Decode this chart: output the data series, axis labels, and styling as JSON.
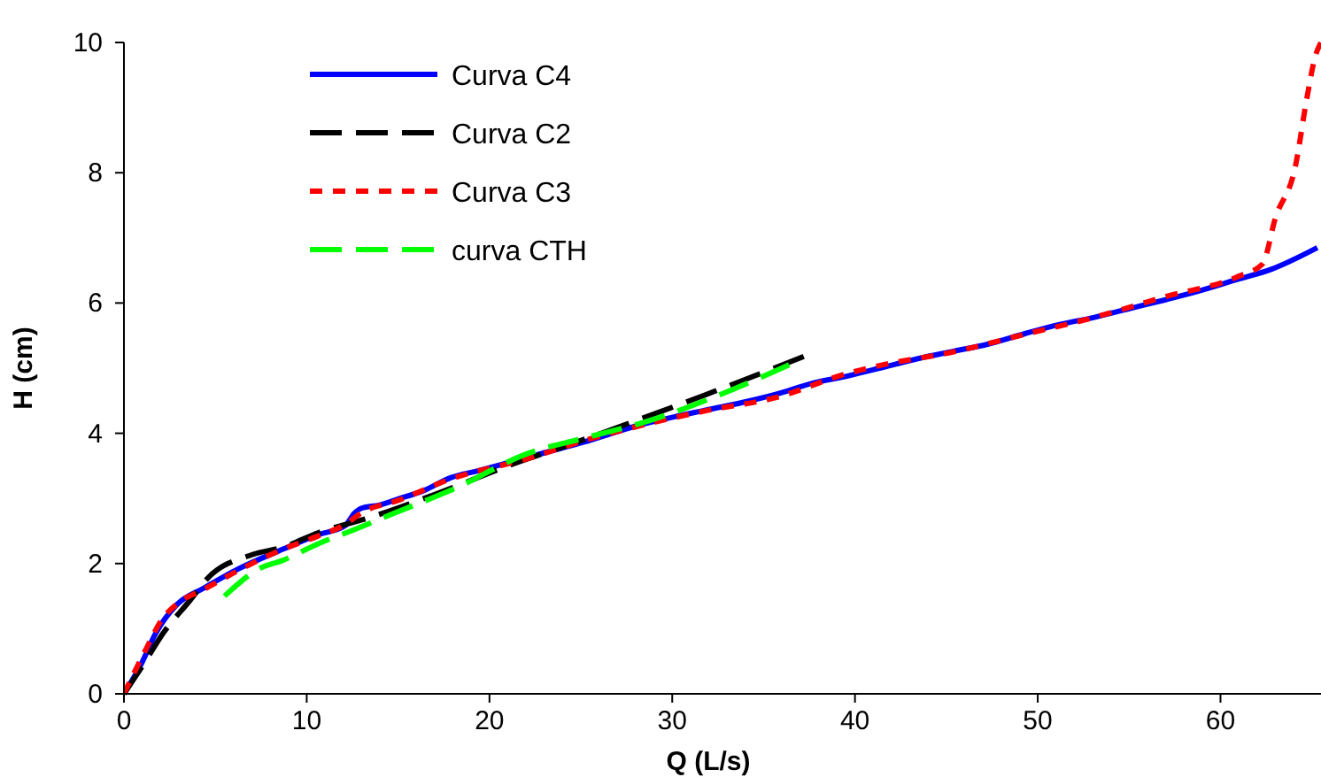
{
  "chart_data": {
    "type": "line",
    "xlabel": "Q (L/s)",
    "ylabel": "H (cm)",
    "xlim": [
      0,
      65.5
    ],
    "ylim": [
      0,
      10
    ],
    "xticks": [
      0,
      10,
      20,
      30,
      40,
      50,
      60
    ],
    "yticks": [
      0,
      2,
      4,
      6,
      8,
      10
    ],
    "grid": false,
    "legend": "top left",
    "marker": "none",
    "series": [
      {
        "name": "Curva C4",
        "color": "#0000ff",
        "line_style": "solid",
        "x": [
          0,
          0.97,
          1.74,
          2.9,
          4.35,
          6.28,
          8.7,
          10.6,
          12.1,
          12.6,
          13,
          14,
          15,
          16.4,
          17.9,
          19.3,
          22.2,
          25.1,
          28,
          31.9,
          33.8,
          35.7,
          37.7,
          39.6,
          41.5,
          43.5,
          45.4,
          47.3,
          49.3,
          51.2,
          53.1,
          55.1,
          57,
          58.9,
          60.9,
          62.8,
          65.3
        ],
        "values": [
          0,
          0.47,
          0.93,
          1.37,
          1.62,
          1.92,
          2.22,
          2.44,
          2.58,
          2.77,
          2.85,
          2.9,
          2.99,
          3.12,
          3.32,
          3.42,
          3.64,
          3.86,
          4.11,
          4.36,
          4.47,
          4.6,
          4.77,
          4.88,
          5.01,
          5.15,
          5.26,
          5.37,
          5.53,
          5.67,
          5.78,
          5.92,
          6.05,
          6.19,
          6.36,
          6.52,
          6.85
        ]
      },
      {
        "name": "Curva C2",
        "color": "#000000",
        "line_style": "dashed",
        "x": [
          0,
          0.97,
          2.22,
          3.57,
          4.6,
          7.05,
          8.7,
          10.6,
          13.5,
          17.1,
          21.3,
          23.9,
          31.9,
          37.2
        ],
        "values": [
          0,
          0.41,
          0.96,
          1.42,
          1.78,
          2.14,
          2.25,
          2.47,
          2.71,
          3.07,
          3.53,
          3.78,
          4.6,
          5.18
        ]
      },
      {
        "name": "Curva C3",
        "color": "#ff0000",
        "line_style": "dotted",
        "x": [
          0,
          1.16,
          2.1,
          3,
          4.35,
          6.3,
          8.7,
          10.6,
          12.1,
          13,
          15,
          17.9,
          22.2,
          25.1,
          28,
          31.9,
          35.7,
          39.6,
          41.5,
          45.4,
          49.3,
          53.1,
          57,
          60.9,
          62.3,
          63,
          64.1,
          64.7,
          65.2,
          65.5
        ],
        "values": [
          0,
          0.66,
          1.15,
          1.4,
          1.6,
          1.9,
          2.22,
          2.42,
          2.6,
          2.78,
          2.97,
          3.3,
          3.62,
          3.88,
          4.1,
          4.35,
          4.55,
          4.92,
          5.05,
          5.25,
          5.52,
          5.78,
          6.1,
          6.4,
          6.6,
          7.3,
          8.1,
          9.1,
          9.8,
          10
        ]
      },
      {
        "name": "curva CTH",
        "color": "#00ff00",
        "line_style": "dashed",
        "x": [
          5.5,
          7.4,
          8.7,
          10.6,
          12.6,
          14.5,
          18,
          22.2,
          25.1,
          28.7,
          32.5,
          36.4
        ],
        "values": [
          1.5,
          1.92,
          2.05,
          2.3,
          2.52,
          2.74,
          3.14,
          3.7,
          3.92,
          4.19,
          4.58,
          5.05
        ]
      }
    ]
  }
}
